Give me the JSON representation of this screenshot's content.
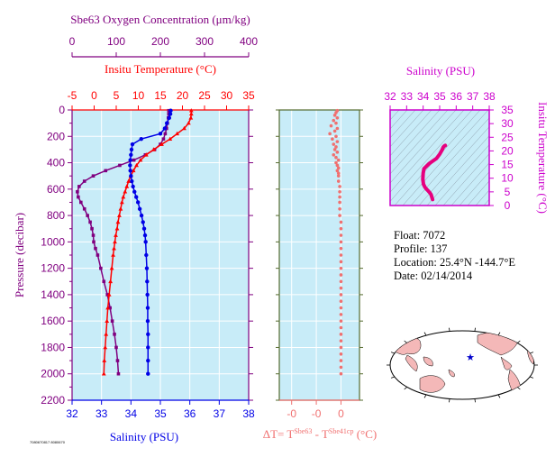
{
  "colors": {
    "oxygen": "#800080",
    "temperature": "#ff0000",
    "salinity": "#0000e6",
    "delta": "#f07070",
    "panel_bg": "#c8ecf8",
    "ts_curve": "#e6007e",
    "ts_axis": "#cc00cc",
    "frame_dark": "#556b2f",
    "land": "#f4b8b8",
    "ocean": "#ffffff",
    "marker": "#0000cc"
  },
  "info": {
    "float": "Float:  7072",
    "profile": "Profile:  137",
    "location": "Location:  25.4°N  -144.7°E",
    "date": "Date:  02/14/2014"
  },
  "footer_code": "7080670817 8080670",
  "chart_data": [
    {
      "type": "line",
      "name": "profile",
      "ylabel": "Pressure (decibar)",
      "ylim": [
        0,
        2200
      ],
      "yticks": [
        "0",
        "200",
        "400",
        "600",
        "800",
        "1000",
        "1200",
        "1400",
        "1600",
        "1800",
        "2000",
        "2200"
      ],
      "y_inverted": true,
      "axes": {
        "oxygen": {
          "label": "Sbe63 Oxygen Concentration (μm/kg)",
          "lim": [
            0,
            400
          ],
          "ticks": [
            "0",
            "100",
            "200",
            "300",
            "400"
          ]
        },
        "temperature": {
          "label": "Insitu Temperature (°C)",
          "lim": [
            -5,
            35
          ],
          "ticks": [
            "-5",
            "0",
            "5",
            "10",
            "15",
            "20",
            "25",
            "30",
            "35"
          ]
        },
        "salinity": {
          "label": "Salinity (PSU)",
          "lim": [
            32,
            38
          ],
          "ticks": [
            "32",
            "33",
            "34",
            "35",
            "36",
            "37",
            "38"
          ]
        }
      },
      "series": [
        {
          "key": "oxygen",
          "pressure": [
            5,
            30,
            60,
            100,
            140,
            180,
            220,
            260,
            300,
            340,
            380,
            420,
            460,
            500,
            540,
            580,
            620,
            660,
            700,
            750,
            800,
            850,
            900,
            950,
            1000,
            1050,
            1100,
            1200,
            1300,
            1400,
            1500,
            1600,
            1700,
            1800,
            1900,
            2000
          ],
          "values": [
            219,
            219,
            218,
            216,
            214,
            211,
            207,
            200,
            187,
            166,
            140,
            108,
            76,
            48,
            28,
            16,
            12,
            14,
            20,
            28,
            35,
            41,
            45,
            48,
            49,
            53,
            58,
            65,
            72,
            80,
            86,
            91,
            96,
            100,
            103,
            105
          ]
        },
        {
          "key": "temperature",
          "pressure": [
            5,
            30,
            60,
            100,
            140,
            180,
            220,
            260,
            300,
            340,
            380,
            420,
            460,
            500,
            540,
            580,
            620,
            660,
            700,
            750,
            800,
            850,
            900,
            950,
            1000,
            1050,
            1100,
            1200,
            1300,
            1400,
            1500,
            1600,
            1700,
            1800,
            1900,
            2000
          ],
          "values": [
            22.0,
            22.0,
            21.9,
            21.4,
            20.4,
            18.8,
            17.2,
            15.3,
            13.5,
            11.8,
            10.5,
            9.6,
            8.9,
            8.3,
            7.8,
            7.4,
            7.0,
            6.6,
            6.3,
            6.0,
            5.7,
            5.4,
            5.2,
            4.9,
            4.7,
            4.5,
            4.3,
            4.0,
            3.7,
            3.4,
            3.1,
            2.9,
            2.7,
            2.5,
            2.3,
            2.2
          ]
        },
        {
          "key": "salinity",
          "pressure": [
            5,
            30,
            60,
            100,
            140,
            180,
            220,
            260,
            300,
            340,
            380,
            420,
            460,
            500,
            540,
            580,
            620,
            660,
            700,
            750,
            800,
            850,
            900,
            950,
            1000,
            1100,
            1200,
            1300,
            1400,
            1500,
            1600,
            1700,
            1800,
            1900,
            2000
          ],
          "values": [
            35.35,
            35.34,
            35.3,
            35.22,
            35.15,
            35.0,
            34.35,
            34.05,
            34.02,
            34.0,
            33.98,
            33.97,
            33.98,
            34.0,
            34.03,
            34.07,
            34.12,
            34.18,
            34.24,
            34.3,
            34.36,
            34.41,
            34.45,
            34.48,
            34.5,
            34.52,
            34.54,
            34.55,
            34.56,
            34.57,
            34.57,
            34.58,
            34.58,
            34.58,
            34.58
          ]
        }
      ]
    },
    {
      "type": "scatter",
      "name": "delta-temperature",
      "xlabel": "ΔT= TSbe63 - TSbe41cp (°C)",
      "xticks": [
        "-0",
        "-0",
        "0"
      ],
      "xlim": [
        -0.05,
        0.015
      ],
      "ylim": [
        0,
        2200
      ],
      "pressure": [
        5,
        20,
        40,
        60,
        80,
        100,
        120,
        140,
        160,
        180,
        200,
        220,
        240,
        260,
        280,
        300,
        320,
        340,
        360,
        380,
        400,
        420,
        440,
        460,
        480,
        500,
        540,
        580,
        620,
        660,
        700,
        750,
        800,
        850,
        900,
        950,
        1000,
        1050,
        1100,
        1150,
        1200,
        1250,
        1300,
        1350,
        1400,
        1450,
        1500,
        1550,
        1600,
        1650,
        1700,
        1750,
        1800,
        1850,
        1900,
        1950,
        2000
      ],
      "values": [
        -0.003,
        -0.004,
        -0.005,
        -0.003,
        -0.006,
        -0.004,
        -0.008,
        -0.003,
        -0.005,
        -0.009,
        -0.004,
        -0.007,
        -0.003,
        -0.006,
        -0.004,
        -0.005,
        -0.003,
        -0.006,
        -0.004,
        -0.002,
        -0.004,
        -0.003,
        -0.002,
        -0.003,
        -0.002,
        -0.002,
        -0.002,
        -0.001,
        -0.001,
        -0.001,
        -0.001,
        -0.001,
        -0.001,
        0.0,
        0.0,
        0.0,
        0.0,
        0.0,
        0.0,
        0.0,
        0.0,
        0.0,
        0.0,
        0.0,
        0.0,
        0.0,
        0.0,
        0.0,
        0.0,
        0.0,
        0.0,
        0.0,
        0.0,
        0.0,
        0.0,
        0.0,
        0.0
      ]
    },
    {
      "type": "line",
      "name": "ts-diagram",
      "xlabel": "Salinity (PSU)",
      "ylabel": "Insitu Temperature (°C)",
      "xlim": [
        32,
        38
      ],
      "ylim": [
        0,
        35
      ],
      "xticks": [
        "32",
        "33",
        "34",
        "35",
        "36",
        "37",
        "38"
      ],
      "yticks": [
        "0",
        "5",
        "10",
        "15",
        "20",
        "25",
        "30",
        "35"
      ],
      "salinity": [
        34.57,
        34.53,
        34.48,
        34.4,
        34.3,
        34.2,
        34.1,
        34.02,
        33.98,
        34.0,
        34.05,
        34.35,
        34.8,
        35.0,
        35.15,
        35.22,
        35.3,
        35.34
      ],
      "temperature": [
        2.2,
        3.0,
        4.0,
        4.7,
        5.4,
        6.0,
        6.8,
        7.8,
        9.6,
        11.8,
        13.5,
        15.3,
        17.2,
        18.8,
        20.4,
        21.4,
        21.9,
        22.0
      ]
    }
  ]
}
